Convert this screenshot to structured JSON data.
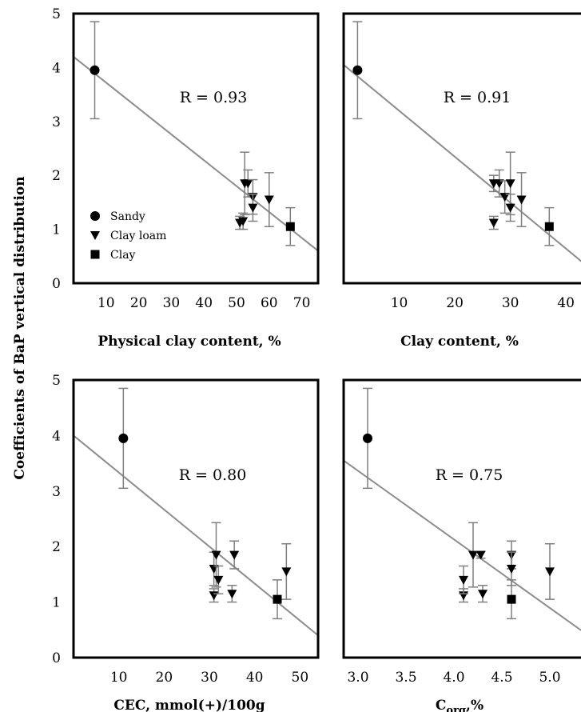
{
  "figure": {
    "ylabel": "Coefficients of BaP vertical distribution"
  },
  "legend": {
    "entries": [
      {
        "label": "Sandy",
        "marker": "circle"
      },
      {
        "label": "Clay loam",
        "marker": "triangle-down"
      },
      {
        "label": "Clay",
        "marker": "square"
      }
    ]
  },
  "colors": {
    "points": "#000000",
    "error_bars": "#7f7f7f",
    "fit_line": "#8c8c8c",
    "frame": "#000000"
  },
  "chart_data": [
    {
      "type": "scatter",
      "xlabel": "Physical clay content, %",
      "xlabel_sub": "",
      "xlabel_tail": "",
      "annotation": "R = 0.93",
      "xlim": [
        0,
        75
      ],
      "ylim": [
        0,
        5
      ],
      "xticks": [
        10,
        20,
        30,
        40,
        50,
        60,
        70
      ],
      "xtick_labels": [
        "10",
        "20",
        "30",
        "40",
        "50",
        "60",
        "70"
      ],
      "yticks": [
        0,
        1,
        2,
        3,
        4,
        5
      ],
      "trend": [
        [
          0,
          4.2
        ],
        [
          75,
          0.6
        ]
      ],
      "points": [
        {
          "x": 6.5,
          "y": 3.95,
          "err": 0.9,
          "group": "Sandy"
        },
        {
          "x": 51,
          "y": 1.12,
          "err": 0.12,
          "group": "Clay loam"
        },
        {
          "x": 52,
          "y": 1.15,
          "err": 0.15,
          "group": "Clay loam"
        },
        {
          "x": 52.5,
          "y": 1.85,
          "err": 0.58,
          "group": "Clay loam"
        },
        {
          "x": 53.5,
          "y": 1.85,
          "err": 0.25,
          "group": "Clay loam"
        },
        {
          "x": 55,
          "y": 1.6,
          "err": 0.32,
          "group": "Clay loam"
        },
        {
          "x": 55,
          "y": 1.4,
          "err": 0.25,
          "group": "Clay loam"
        },
        {
          "x": 60,
          "y": 1.55,
          "err": 0.5,
          "group": "Clay loam"
        },
        {
          "x": 66.5,
          "y": 1.05,
          "err": 0.35,
          "group": "Clay"
        }
      ]
    },
    {
      "type": "scatter",
      "xlabel": "Clay content, %",
      "xlabel_sub": "",
      "xlabel_tail": "",
      "annotation": "R = 0.91",
      "xlim": [
        0,
        44
      ],
      "ylim": [
        0,
        5
      ],
      "xticks": [
        10,
        20,
        30,
        40
      ],
      "xtick_labels": [
        "10",
        "20",
        "30",
        "40"
      ],
      "yticks": [],
      "trend": [
        [
          0,
          4.05
        ],
        [
          44,
          0.3
        ]
      ],
      "points": [
        {
          "x": 2.5,
          "y": 3.95,
          "err": 0.9,
          "group": "Sandy"
        },
        {
          "x": 27,
          "y": 1.12,
          "err": 0.12,
          "group": "Clay loam"
        },
        {
          "x": 27,
          "y": 1.85,
          "err": 0.15,
          "group": "Clay loam"
        },
        {
          "x": 28,
          "y": 1.85,
          "err": 0.25,
          "group": "Clay loam"
        },
        {
          "x": 29,
          "y": 1.6,
          "err": 0.3,
          "group": "Clay loam"
        },
        {
          "x": 30,
          "y": 1.85,
          "err": 0.58,
          "group": "Clay loam"
        },
        {
          "x": 30,
          "y": 1.4,
          "err": 0.25,
          "group": "Clay loam"
        },
        {
          "x": 32,
          "y": 1.55,
          "err": 0.5,
          "group": "Clay loam"
        },
        {
          "x": 37,
          "y": 1.05,
          "err": 0.35,
          "group": "Clay"
        }
      ]
    },
    {
      "type": "scatter",
      "xlabel": "CEC, mmol(+)/100g",
      "xlabel_sub": "",
      "xlabel_tail": "",
      "annotation": "R = 0.80",
      "xlim": [
        0,
        54
      ],
      "ylim": [
        0,
        5
      ],
      "xticks": [
        10,
        20,
        30,
        40,
        50
      ],
      "xtick_labels": [
        "10",
        "20",
        "30",
        "40",
        "50"
      ],
      "yticks": [
        0,
        1,
        2,
        3,
        4,
        5
      ],
      "trend": [
        [
          0,
          4.0
        ],
        [
          54,
          0.4
        ]
      ],
      "points": [
        {
          "x": 11,
          "y": 3.95,
          "err": 0.9,
          "group": "Sandy"
        },
        {
          "x": 31,
          "y": 1.12,
          "err": 0.12,
          "group": "Clay loam"
        },
        {
          "x": 31,
          "y": 1.6,
          "err": 0.3,
          "group": "Clay loam"
        },
        {
          "x": 31.5,
          "y": 1.85,
          "err": 0.58,
          "group": "Clay loam"
        },
        {
          "x": 32,
          "y": 1.4,
          "err": 0.25,
          "group": "Clay loam"
        },
        {
          "x": 35,
          "y": 1.15,
          "err": 0.15,
          "group": "Clay loam"
        },
        {
          "x": 35.5,
          "y": 1.85,
          "err": 0.25,
          "group": "Clay loam"
        },
        {
          "x": 47,
          "y": 1.55,
          "err": 0.5,
          "group": "Clay loam"
        },
        {
          "x": 45,
          "y": 1.05,
          "err": 0.35,
          "group": "Clay"
        }
      ]
    },
    {
      "type": "scatter",
      "xlabel": "C",
      "xlabel_sub": "org",
      "xlabel_tail": ",%",
      "annotation": "R = 0.75",
      "xlim": [
        2.85,
        5.4
      ],
      "ylim": [
        0,
        5
      ],
      "xticks": [
        3.0,
        3.5,
        4.0,
        4.5,
        5.0
      ],
      "xtick_labels": [
        "3.0",
        "3.5",
        "4.0",
        "4.5",
        "5.0"
      ],
      "yticks": [],
      "trend": [
        [
          2.85,
          3.55
        ],
        [
          5.4,
          0.4
        ]
      ],
      "points": [
        {
          "x": 3.1,
          "y": 3.95,
          "err": 0.9,
          "group": "Sandy"
        },
        {
          "x": 4.1,
          "y": 1.12,
          "err": 0.12,
          "group": "Clay loam"
        },
        {
          "x": 4.1,
          "y": 1.4,
          "err": 0.25,
          "group": "Clay loam"
        },
        {
          "x": 4.2,
          "y": 1.85,
          "err": 0.58,
          "group": "Clay loam"
        },
        {
          "x": 4.28,
          "y": 1.85,
          "err": 0.06,
          "group": "Clay loam"
        },
        {
          "x": 4.3,
          "y": 1.15,
          "err": 0.15,
          "group": "Clay loam"
        },
        {
          "x": 4.6,
          "y": 1.85,
          "err": 0.25,
          "group": "Clay loam"
        },
        {
          "x": 4.6,
          "y": 1.6,
          "err": 0.3,
          "group": "Clay loam"
        },
        {
          "x": 5.0,
          "y": 1.55,
          "err": 0.5,
          "group": "Clay loam"
        },
        {
          "x": 4.6,
          "y": 1.05,
          "err": 0.35,
          "group": "Clay"
        }
      ]
    }
  ]
}
